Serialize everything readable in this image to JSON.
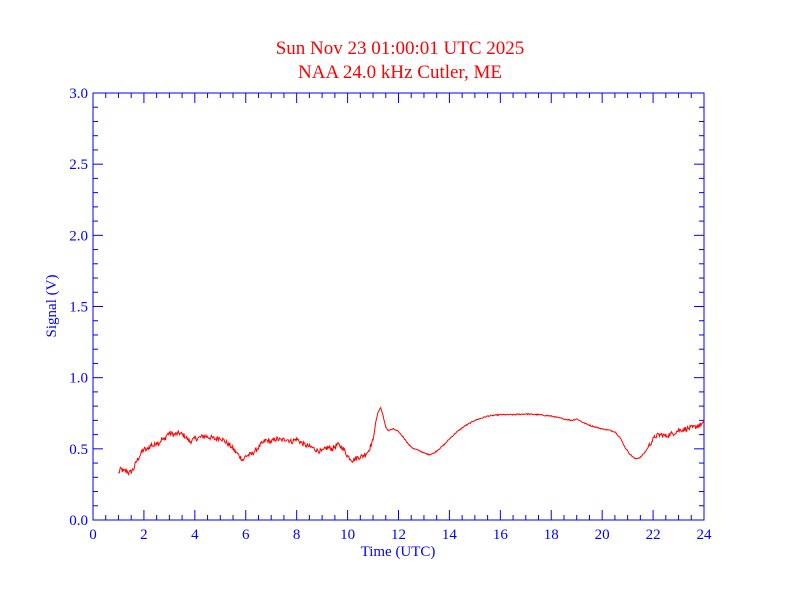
{
  "chart_data": {
    "type": "line",
    "title": "Sun Nov 23 01:00:01 UTC 2025",
    "subtitle": "NAA 24.0 kHz Cutler, ME",
    "xlabel": "Time (UTC)",
    "ylabel": "Signal (V)",
    "xlim": [
      0,
      24
    ],
    "ylim": [
      0,
      3.0
    ],
    "x_ticks": [
      "0",
      "2",
      "4",
      "6",
      "8",
      "10",
      "12",
      "14",
      "16",
      "18",
      "20",
      "22",
      "24"
    ],
    "y_ticks": [
      "0.0",
      "0.5",
      "1.0",
      "1.5",
      "2.0",
      "2.5",
      "3.0"
    ],
    "grid": false,
    "colors": {
      "title": "#ff0000",
      "axes": "#0000ff",
      "series": "#ff0000"
    },
    "series": [
      {
        "values": [
          [
            1.0,
            0.33
          ],
          [
            1.1,
            0.36
          ],
          [
            1.2,
            0.34
          ],
          [
            1.3,
            0.35
          ],
          [
            1.4,
            0.33
          ],
          [
            1.5,
            0.34
          ],
          [
            1.6,
            0.36
          ],
          [
            1.7,
            0.41
          ],
          [
            1.8,
            0.44
          ],
          [
            1.9,
            0.47
          ],
          [
            2.0,
            0.5
          ],
          [
            2.1,
            0.49
          ],
          [
            2.2,
            0.51
          ],
          [
            2.3,
            0.53
          ],
          [
            2.4,
            0.52
          ],
          [
            2.5,
            0.55
          ],
          [
            2.6,
            0.54
          ],
          [
            2.7,
            0.57
          ],
          [
            2.8,
            0.56
          ],
          [
            2.9,
            0.6
          ],
          [
            3.0,
            0.61
          ],
          [
            3.2,
            0.6
          ],
          [
            3.4,
            0.61
          ],
          [
            3.6,
            0.59
          ],
          [
            3.8,
            0.55
          ],
          [
            4.0,
            0.57
          ],
          [
            4.2,
            0.58
          ],
          [
            4.4,
            0.59
          ],
          [
            4.6,
            0.58
          ],
          [
            4.8,
            0.57
          ],
          [
            5.0,
            0.58
          ],
          [
            5.2,
            0.55
          ],
          [
            5.4,
            0.52
          ],
          [
            5.6,
            0.48
          ],
          [
            5.8,
            0.44
          ],
          [
            5.9,
            0.42
          ],
          [
            6.0,
            0.45
          ],
          [
            6.2,
            0.46
          ],
          [
            6.4,
            0.49
          ],
          [
            6.6,
            0.53
          ],
          [
            6.8,
            0.56
          ],
          [
            7.0,
            0.55
          ],
          [
            7.2,
            0.57
          ],
          [
            7.4,
            0.56
          ],
          [
            7.6,
            0.57
          ],
          [
            7.8,
            0.55
          ],
          [
            8.0,
            0.57
          ],
          [
            8.2,
            0.54
          ],
          [
            8.4,
            0.52
          ],
          [
            8.6,
            0.51
          ],
          [
            8.8,
            0.49
          ],
          [
            9.0,
            0.48
          ],
          [
            9.2,
            0.51
          ],
          [
            9.4,
            0.5
          ],
          [
            9.6,
            0.53
          ],
          [
            9.8,
            0.51
          ],
          [
            10.0,
            0.45
          ],
          [
            10.2,
            0.42
          ],
          [
            10.4,
            0.44
          ],
          [
            10.6,
            0.45
          ],
          [
            10.8,
            0.48
          ],
          [
            10.9,
            0.52
          ],
          [
            11.0,
            0.56
          ],
          [
            11.1,
            0.68
          ],
          [
            11.2,
            0.76
          ],
          [
            11.3,
            0.79
          ],
          [
            11.4,
            0.73
          ],
          [
            11.5,
            0.65
          ],
          [
            11.6,
            0.63
          ],
          [
            11.8,
            0.64
          ],
          [
            12.0,
            0.62
          ],
          [
            12.2,
            0.58
          ],
          [
            12.4,
            0.53
          ],
          [
            12.6,
            0.5
          ],
          [
            12.8,
            0.49
          ],
          [
            13.0,
            0.47
          ],
          [
            13.2,
            0.46
          ],
          [
            13.4,
            0.47
          ],
          [
            13.6,
            0.5
          ],
          [
            13.8,
            0.53
          ],
          [
            14.0,
            0.57
          ],
          [
            14.3,
            0.62
          ],
          [
            14.6,
            0.66
          ],
          [
            15.0,
            0.7
          ],
          [
            15.5,
            0.73
          ],
          [
            16.0,
            0.74
          ],
          [
            16.5,
            0.74
          ],
          [
            17.0,
            0.745
          ],
          [
            17.5,
            0.74
          ],
          [
            18.0,
            0.73
          ],
          [
            18.5,
            0.71
          ],
          [
            18.8,
            0.7
          ],
          [
            19.0,
            0.71
          ],
          [
            19.3,
            0.68
          ],
          [
            19.6,
            0.66
          ],
          [
            20.0,
            0.64
          ],
          [
            20.3,
            0.63
          ],
          [
            20.5,
            0.62
          ],
          [
            20.7,
            0.58
          ],
          [
            20.9,
            0.51
          ],
          [
            21.1,
            0.46
          ],
          [
            21.3,
            0.43
          ],
          [
            21.5,
            0.44
          ],
          [
            21.7,
            0.48
          ],
          [
            21.9,
            0.54
          ],
          [
            22.1,
            0.59
          ],
          [
            22.3,
            0.6
          ],
          [
            22.5,
            0.59
          ],
          [
            22.8,
            0.61
          ],
          [
            23.0,
            0.63
          ],
          [
            23.3,
            0.64
          ],
          [
            23.6,
            0.65
          ],
          [
            24.0,
            0.68
          ]
        ]
      }
    ]
  }
}
